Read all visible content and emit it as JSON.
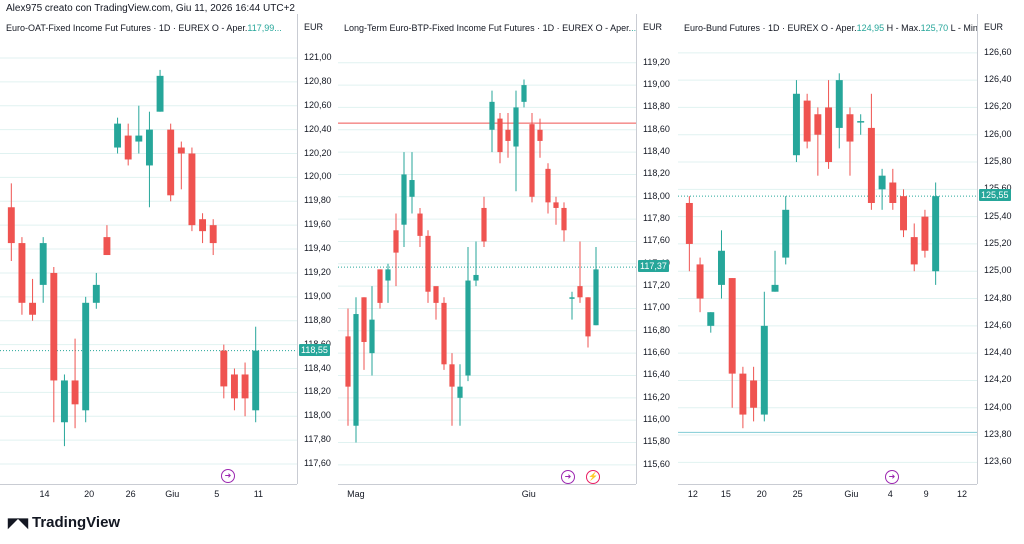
{
  "header_text": "Alex975 creato con TradingView.com, Giu 11, 2026 16:44 UTC+2",
  "logo_text": "TradingView",
  "logo_icon": "tradingview-logo-icon",
  "colors": {
    "up": "#26a69a",
    "down": "#ef5350",
    "grid": "#e0f2f1"
  },
  "panels": [
    {
      "legend_prefix": "Euro-OAT-Fixed Income Fut Futures · 1D · EUREX  O - Aper.",
      "legend_value": "117,99...",
      "currency": "EUR",
      "ymin": 117.5,
      "ymax": 121.1,
      "yticks": [
        "121,00",
        "120,80",
        "120,60",
        "120,40",
        "120,20",
        "120,00",
        "119,80",
        "119,60",
        "119,40",
        "119,20",
        "119,00",
        "118,80",
        "118,60",
        "118,40",
        "118,20",
        "118,00",
        "117,80",
        "117,60"
      ],
      "last_price": "118,55",
      "last_value": 118.55,
      "xticks": [
        "14",
        "20",
        "26",
        "Giu",
        "5",
        "11"
      ],
      "events": [
        "event-icon"
      ],
      "candles": [
        [
          119.75,
          119.45,
          119.95,
          119.3
        ],
        [
          119.45,
          118.95,
          119.5,
          118.85
        ],
        [
          118.95,
          118.85,
          119.15,
          118.8
        ],
        [
          119.1,
          119.45,
          119.5,
          118.95
        ],
        [
          119.2,
          118.3,
          119.25,
          117.95
        ],
        [
          117.95,
          118.3,
          118.35,
          117.75
        ],
        [
          118.3,
          118.1,
          118.65,
          117.9
        ],
        [
          118.05,
          118.95,
          119.0,
          117.95
        ],
        [
          118.95,
          119.1,
          119.2,
          118.9
        ],
        [
          119.5,
          119.35,
          119.6,
          119.35
        ],
        [
          120.25,
          120.45,
          120.5,
          120.2
        ],
        [
          120.35,
          120.15,
          120.45,
          120.1
        ],
        [
          120.3,
          120.35,
          120.6,
          120.2
        ],
        [
          120.1,
          120.4,
          120.55,
          119.75
        ],
        [
          120.55,
          120.85,
          120.9,
          120.55
        ],
        [
          120.4,
          119.85,
          120.45,
          119.8
        ],
        [
          120.25,
          120.2,
          120.3,
          119.9
        ],
        [
          120.2,
          119.6,
          120.25,
          119.55
        ],
        [
          119.65,
          119.55,
          119.7,
          119.45
        ],
        [
          119.6,
          119.45,
          119.65,
          119.35
        ],
        [
          118.55,
          118.25,
          118.6,
          118.15
        ],
        [
          118.35,
          118.15,
          118.4,
          118.05
        ],
        [
          118.35,
          118.15,
          118.45,
          118.0
        ],
        [
          118.05,
          118.55,
          118.75,
          117.95
        ]
      ]
    },
    {
      "legend_prefix": "Long-Term Euro-BTP-Fixed Income Fut Futures · 1D · EUREX  O - Aper.",
      "legend_value": "...",
      "currency": "EUR",
      "ymin": 115.5,
      "ymax": 119.35,
      "yticks": [
        "119,20",
        "119,00",
        "118,80",
        "118,60",
        "118,40",
        "118,20",
        "118,00",
        "117,80",
        "117,60",
        "117,40",
        "117,20",
        "117,00",
        "116,80",
        "116,60",
        "116,40",
        "116,20",
        "116,00",
        "115,80",
        "115,60"
      ],
      "last_price": "117,37",
      "last_value": 117.37,
      "hline_value": 118.66,
      "xticks": [
        "Mag",
        "Giu"
      ],
      "events": [
        "event-icon",
        "lightning-icon"
      ],
      "candles": [
        [
          116.75,
          116.3,
          117.0,
          115.95
        ],
        [
          115.95,
          116.95,
          117.1,
          115.8
        ],
        [
          117.1,
          116.7,
          117.1,
          116.45
        ],
        [
          116.6,
          116.9,
          117.2,
          116.4
        ],
        [
          117.35,
          117.05,
          117.35,
          117.0
        ],
        [
          117.25,
          117.35,
          117.4,
          117.05
        ],
        [
          117.7,
          117.5,
          117.85,
          117.2
        ],
        [
          117.75,
          118.2,
          118.4,
          117.55
        ],
        [
          118.0,
          118.15,
          118.4,
          117.85
        ],
        [
          117.85,
          117.65,
          117.9,
          117.55
        ],
        [
          117.65,
          117.15,
          117.7,
          117.05
        ],
        [
          117.2,
          117.05,
          117.1,
          116.9
        ],
        [
          117.05,
          116.5,
          117.1,
          116.45
        ],
        [
          116.5,
          116.3,
          116.6,
          115.95
        ],
        [
          116.2,
          116.3,
          116.5,
          115.95
        ],
        [
          116.4,
          117.25,
          117.55,
          116.35
        ],
        [
          117.25,
          117.3,
          117.6,
          117.2
        ],
        [
          117.9,
          117.6,
          118.0,
          117.55
        ],
        [
          118.6,
          118.85,
          118.95,
          118.4
        ],
        [
          118.7,
          118.4,
          118.75,
          118.3
        ],
        [
          118.6,
          118.5,
          118.75,
          118.35
        ],
        [
          118.45,
          118.8,
          118.95,
          118.05
        ],
        [
          118.85,
          119.0,
          119.05,
          118.8
        ],
        [
          118.65,
          118.0,
          118.75,
          117.95
        ],
        [
          118.6,
          118.5,
          118.7,
          118.35
        ],
        [
          118.25,
          117.95,
          118.3,
          117.85
        ],
        [
          117.95,
          117.9,
          118.0,
          117.75
        ],
        [
          117.9,
          117.7,
          117.95,
          117.6
        ],
        [
          117.1,
          117.1,
          117.15,
          116.9
        ],
        [
          117.2,
          117.1,
          117.6,
          117.05
        ],
        [
          117.1,
          116.75,
          117.1,
          116.65
        ],
        [
          116.85,
          117.35,
          117.55,
          116.85
        ]
      ]
    },
    {
      "legend_prefix": "Euro-Bund Futures · 1D · EUREX  O - Aper.",
      "legend_value": "124,95",
      "legend_rest": "  H - Max.",
      "legend_value2": "125,70",
      "legend_rest2": "  L - Min....",
      "currency": "EUR",
      "ymin": 123.5,
      "ymax": 126.65,
      "yticks": [
        "126,60",
        "126,40",
        "126,20",
        "126,00",
        "125,80",
        "125,60",
        "125,40",
        "125,20",
        "125,00",
        "124,80",
        "124,60",
        "124,40",
        "124,20",
        "124,00",
        "123,80",
        "123,60"
      ],
      "last_price": "125,55",
      "last_value": 125.55,
      "hline_value": 123.82,
      "xticks": [
        "12",
        "15",
        "20",
        "25",
        "Giu",
        "4",
        "9",
        "12"
      ],
      "events": [
        "event-icon"
      ],
      "candles": [
        [
          125.5,
          125.2,
          125.55,
          125.0
        ],
        [
          125.05,
          124.8,
          125.1,
          124.7
        ],
        [
          124.6,
          124.7,
          124.7,
          124.55
        ],
        [
          124.9,
          125.15,
          125.3,
          124.8
        ],
        [
          124.95,
          124.25,
          124.95,
          124.0
        ],
        [
          124.25,
          123.95,
          124.3,
          123.85
        ],
        [
          124.2,
          124.0,
          124.3,
          123.9
        ],
        [
          123.95,
          124.6,
          124.85,
          123.9
        ],
        [
          124.85,
          124.9,
          125.15,
          124.85
        ],
        [
          125.1,
          125.45,
          125.55,
          125.05
        ],
        [
          125.85,
          126.3,
          126.4,
          125.8
        ],
        [
          126.25,
          125.95,
          126.3,
          125.9
        ],
        [
          126.15,
          126.0,
          126.2,
          125.7
        ],
        [
          126.2,
          125.8,
          126.4,
          125.75
        ],
        [
          126.05,
          126.4,
          126.45,
          125.9
        ],
        [
          126.15,
          125.95,
          126.2,
          125.7
        ],
        [
          126.1,
          126.1,
          126.15,
          126.0
        ],
        [
          126.05,
          125.5,
          126.3,
          125.45
        ],
        [
          125.6,
          125.7,
          125.75,
          125.45
        ],
        [
          125.65,
          125.5,
          125.75,
          125.45
        ],
        [
          125.55,
          125.3,
          125.6,
          125.25
        ],
        [
          125.25,
          125.05,
          125.35,
          125.0
        ],
        [
          125.4,
          125.15,
          125.45,
          125.1
        ],
        [
          125.0,
          125.55,
          125.65,
          124.9
        ]
      ]
    }
  ]
}
